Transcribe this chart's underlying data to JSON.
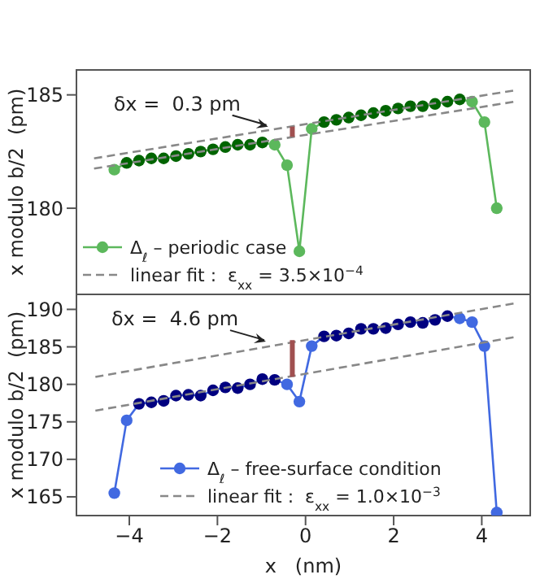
{
  "chart_data": [
    {
      "type": "line",
      "ylabel": "x modulo b/2  (pm)",
      "xlim": [
        -5.2,
        5.1
      ],
      "xticks": [
        -4,
        -2,
        0,
        2,
        4
      ],
      "ylim": [
        176.2,
        186.1
      ],
      "yticks": [
        180,
        185
      ],
      "tick_labels": "y",
      "legend": "bottom left",
      "marker": "circle",
      "x": [
        -4.34,
        -4.06,
        -3.78,
        -3.5,
        -3.22,
        -2.94,
        -2.66,
        -2.38,
        -2.1,
        -1.82,
        -1.54,
        -1.26,
        -0.98,
        -0.7,
        -0.42,
        -0.14,
        0.14,
        0.42,
        0.7,
        0.98,
        1.26,
        1.54,
        1.82,
        2.1,
        2.38,
        2.66,
        2.94,
        3.22,
        3.5,
        3.78,
        4.06,
        4.34
      ],
      "series": [
        {
          "name": "Δ$_{ℓ}$ – periodic case",
          "color": "#5cb85c",
          "values": [
            181.7,
            182.0,
            182.1,
            182.2,
            182.2,
            182.3,
            182.4,
            182.5,
            182.6,
            182.7,
            182.8,
            182.8,
            182.9,
            182.8,
            181.9,
            178.1,
            183.5,
            183.8,
            183.9,
            184.0,
            184.1,
            184.2,
            184.3,
            184.4,
            184.5,
            184.5,
            184.6,
            184.7,
            184.8,
            184.7,
            183.8,
            180.0
          ],
          "colors": [
            "#5cb85c",
            "#006400",
            "#006400",
            "#006400",
            "#006400",
            "#006400",
            "#006400",
            "#006400",
            "#006400",
            "#006400",
            "#006400",
            "#006400",
            "#006400",
            "#5cb85c",
            "#5cb85c",
            "#5cb85c",
            "#5cb85c",
            "#006400",
            "#006400",
            "#006400",
            "#006400",
            "#006400",
            "#006400",
            "#006400",
            "#006400",
            "#006400",
            "#006400",
            "#006400",
            "#006400",
            "#5cb85c",
            "#5cb85c",
            "#5cb85c"
          ]
        },
        {
          "name": "linear fit :  ε$_{xx}$ = 3.5×10$^{−4}$",
          "type": "line",
          "line_style": "dashed",
          "marker": "none",
          "color": "#888888",
          "x": [
            -4.8,
            4.75
          ],
          "values": [
            182.2,
            185.2
          ]
        },
        {
          "type": "line",
          "line_style": "dashed",
          "marker": "none",
          "color": "#888888",
          "x": [
            -4.8,
            4.75
          ],
          "values": [
            181.75,
            184.7
          ]
        },
        {
          "type": "line",
          "marker": "none",
          "color": "#a05050",
          "x": [
            -0.3,
            -0.3
          ],
          "values": [
            183.15,
            183.6
          ]
        }
      ],
      "annotations": [
        {
          "text": "δx =  0.3 pm",
          "x": -0.85,
          "y": 183.6
        }
      ]
    },
    {
      "type": "line",
      "xlabel": "x   (nm)",
      "ylabel": "x modulo b/2  (pm)",
      "xlim": [
        -5.2,
        5.1
      ],
      "xticks": [
        -4,
        -2,
        0,
        2,
        4
      ],
      "ylim": [
        162.5,
        192
      ],
      "yticks": [
        165,
        170,
        175,
        180,
        185,
        190
      ],
      "legend": "bottom",
      "marker": "circle",
      "x": [
        -4.34,
        -4.06,
        -3.78,
        -3.5,
        -3.22,
        -2.94,
        -2.66,
        -2.38,
        -2.1,
        -1.82,
        -1.54,
        -1.26,
        -0.98,
        -0.7,
        -0.42,
        -0.14,
        0.14,
        0.42,
        0.7,
        0.98,
        1.26,
        1.54,
        1.82,
        2.1,
        2.38,
        2.66,
        2.94,
        3.22,
        3.5,
        3.78,
        4.06,
        4.34
      ],
      "series": [
        {
          "name": "Δ$_{ℓ}$ – free-surface condition",
          "color": "#4169e1",
          "values": [
            165.5,
            175.2,
            177.4,
            177.6,
            177.8,
            178.5,
            178.6,
            178.5,
            179.2,
            179.6,
            179.5,
            180.0,
            180.7,
            180.6,
            180.0,
            177.7,
            185.1,
            186.4,
            186.5,
            186.8,
            187.4,
            187.4,
            187.5,
            188.0,
            188.3,
            188.2,
            188.6,
            189.1,
            188.8,
            188.3,
            185.1,
            162.9
          ],
          "colors": [
            "#4169e1",
            "#4169e1",
            "#000080",
            "#000080",
            "#000080",
            "#000080",
            "#000080",
            "#000080",
            "#000080",
            "#000080",
            "#000080",
            "#000080",
            "#000080",
            "#000080",
            "#4169e1",
            "#4169e1",
            "#4169e1",
            "#000080",
            "#000080",
            "#000080",
            "#000080",
            "#000080",
            "#000080",
            "#000080",
            "#000080",
            "#000080",
            "#000080",
            "#000080",
            "#4169e1",
            "#4169e1",
            "#4169e1",
            "#4169e1"
          ]
        },
        {
          "name": "linear fit :  ε$_{xx}$ = 1.0×10$^{−3}$",
          "type": "line",
          "line_style": "dashed",
          "marker": "none",
          "color": "#888888",
          "x": [
            -4.77,
            4.74
          ],
          "values": [
            181.0,
            190.8
          ]
        },
        {
          "type": "line",
          "line_style": "dashed",
          "marker": "none",
          "color": "#888888",
          "x": [
            -4.77,
            4.74
          ],
          "values": [
            176.5,
            186.3
          ]
        },
        {
          "type": "line",
          "marker": "none",
          "color": "#a05050",
          "x": [
            -0.3,
            -0.3
          ],
          "values": [
            181.0,
            185.9
          ]
        }
      ],
      "annotations": [
        {
          "text": "δx =  4.6 pm",
          "x": -0.9,
          "y": 185.7
        }
      ]
    }
  ]
}
